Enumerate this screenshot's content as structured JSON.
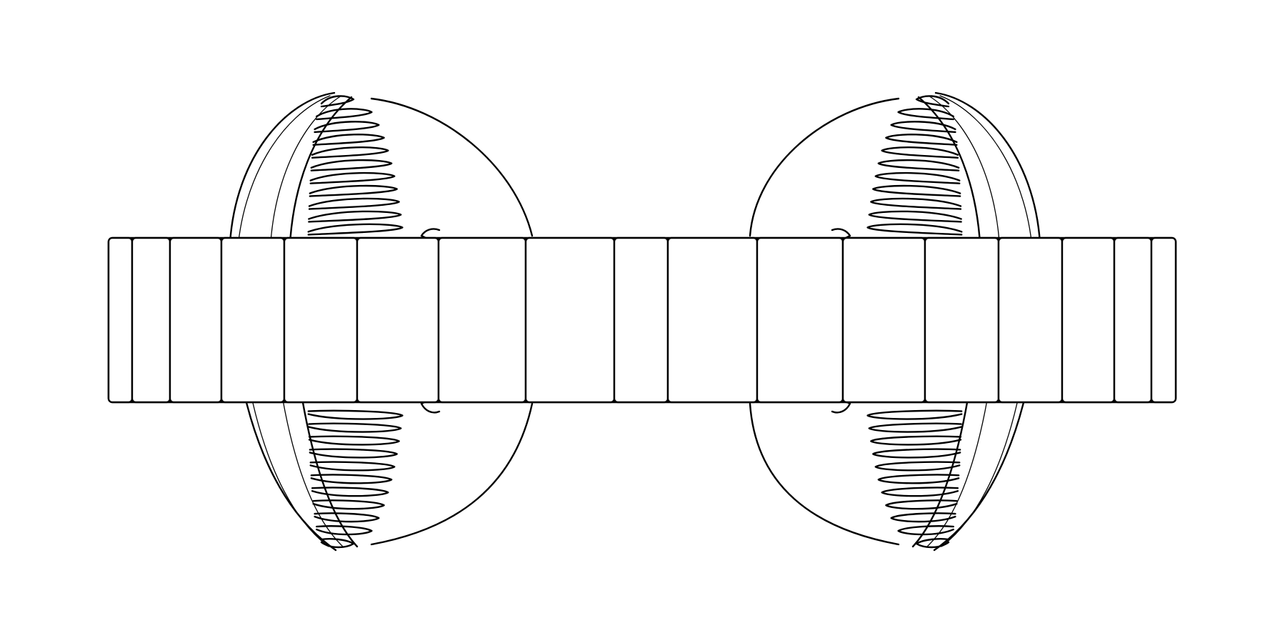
{
  "figure": {
    "subject": "headphones-line-drawing",
    "stroke_color": "#000000",
    "background_color": "#ffffff",
    "headband_segment_count": 17,
    "earcup_count": 2
  }
}
